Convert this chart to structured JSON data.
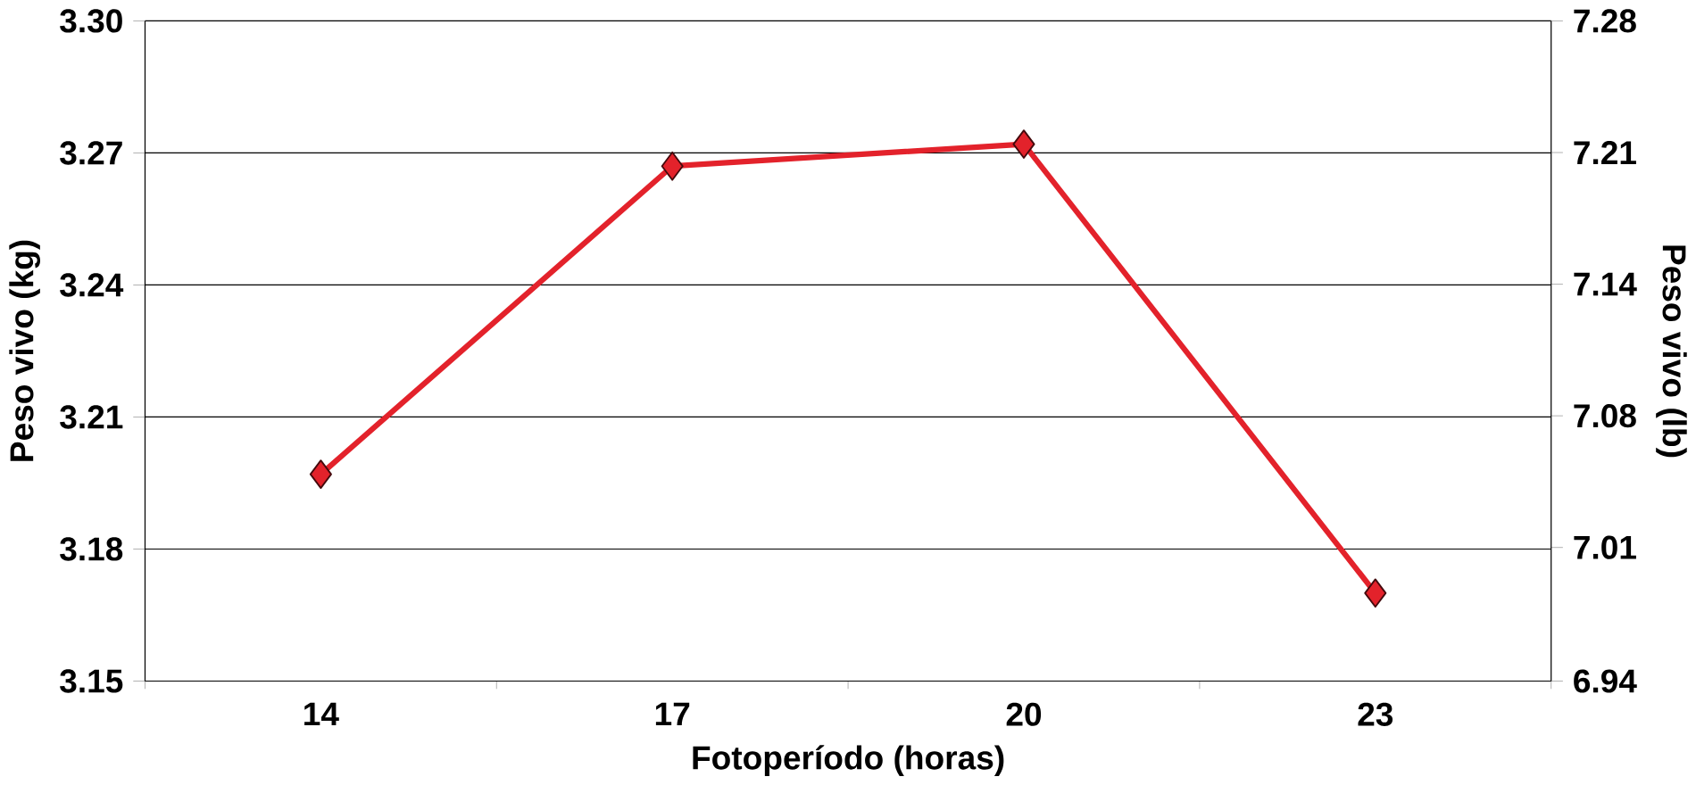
{
  "chart_data": {
    "type": "line",
    "xlabel": "Fotoperíodo (horas)",
    "ylabel": "Peso vivo (kg)",
    "y2label": "Peso vivo (lb)",
    "categories": [
      "14",
      "17",
      "20",
      "23"
    ],
    "series": [
      {
        "color": "#e3222b",
        "values": [
          3.197,
          3.267,
          3.272,
          3.17
        ]
      }
    ],
    "ylim": [
      3.15,
      3.3
    ],
    "yticks": [
      {
        "value": 3.15,
        "label": "3.15"
      },
      {
        "value": 3.18,
        "label": "3.18"
      },
      {
        "value": 3.21,
        "label": "3.21"
      },
      {
        "value": 3.24,
        "label": "3.24"
      },
      {
        "value": 3.27,
        "label": "3.27"
      },
      {
        "value": 3.3,
        "label": "3.30"
      }
    ],
    "y2lim": [
      6.944,
      7.275
    ],
    "y2ticks": [
      {
        "value": 6.944,
        "label": "6.94"
      },
      {
        "value": 7.011,
        "label": "7.01"
      },
      {
        "value": 7.077,
        "label": "7.08"
      },
      {
        "value": 7.143,
        "label": "7.14"
      },
      {
        "value": 7.209,
        "label": "7.21"
      },
      {
        "value": 7.275,
        "label": "7.28"
      }
    ],
    "grid": "y",
    "marker": "diamond",
    "line_style": "solid"
  }
}
